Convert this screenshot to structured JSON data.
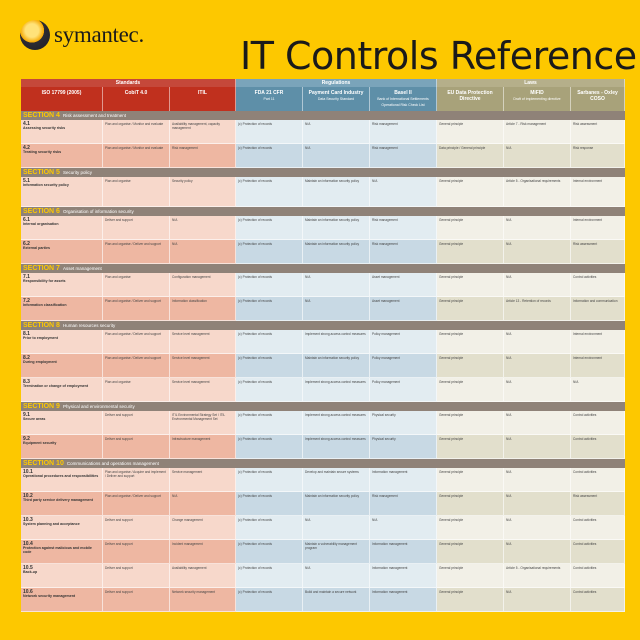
{
  "brand": {
    "logo_text": "symantec."
  },
  "title": "IT Controls Reference",
  "colors": {
    "background": "#fdc800",
    "standards": "#c0301e",
    "regulations": "#5e8fa8",
    "laws": "#a8a27a",
    "section_bar": "#8f8278"
  },
  "header": {
    "groups": [
      {
        "label": "Standards"
      },
      {
        "label": "Regulations"
      },
      {
        "label": "Laws"
      }
    ],
    "columns": [
      {
        "label": "ISO 17799 (2005)",
        "sub": ""
      },
      {
        "label": "CobiT 4.0",
        "sub": ""
      },
      {
        "label": "ITIL",
        "sub": ""
      },
      {
        "label": "FDA 21 CFR",
        "sub": "Part 11"
      },
      {
        "label": "Payment Card Industry",
        "sub": "Data Security Standard"
      },
      {
        "label": "Basel II",
        "sub": "Bank of International Settlements Operational Risk Check List"
      },
      {
        "label": "EU Data Protection Directive",
        "sub": ""
      },
      {
        "label": "MiFID",
        "sub": "Draft of implementing directive"
      },
      {
        "label": "Sarbanes - Oxley COSO",
        "sub": ""
      }
    ]
  },
  "sections": [
    {
      "num": "4",
      "label": "Risk assessment and treatment",
      "rows": [
        {
          "id": "4.1",
          "title": "Assessing security risks",
          "cells": [
            "Plan and organise / Monitor and evaluate",
            "Availability management, capacity management",
            "(c) Protection of records",
            "N/A",
            "Risk management",
            "General principle",
            "Article 7 - Risk management",
            "Risk assessment"
          ]
        },
        {
          "id": "4.2",
          "title": "Treating security risks",
          "cells": [
            "Plan and organise / Monitor and evaluate",
            "Risk management",
            "(c) Protection of records",
            "N/A",
            "Risk management",
            "Data principle / General principle",
            "N/A",
            "Risk response"
          ]
        }
      ]
    },
    {
      "num": "5",
      "label": "Security policy",
      "rows": [
        {
          "id": "5.1",
          "title": "Information security policy",
          "cells": [
            "Plan and organise",
            "Security policy",
            "(c) Protection of records",
            "Maintain an information security policy",
            "N/A",
            "General principle",
            "Article 5 - Organisational requirements",
            "Internal environment"
          ]
        }
      ]
    },
    {
      "num": "6",
      "label": "Organisation of information security",
      "rows": [
        {
          "id": "6.1",
          "title": "Internal organisation",
          "cells": [
            "Deliver and support",
            "N/A",
            "(c) Protection of records",
            "Maintain an information security policy",
            "Risk management",
            "General principle",
            "N/A",
            "Internal environment"
          ]
        },
        {
          "id": "6.2",
          "title": "External parties",
          "cells": [
            "Plan and organise / Deliver and support",
            "N/A",
            "(c) Protection of records",
            "Maintain an information security policy",
            "Risk management",
            "General principle",
            "N/A",
            "Risk assessment"
          ]
        }
      ]
    },
    {
      "num": "7",
      "label": "Asset management",
      "rows": [
        {
          "id": "7.1",
          "title": "Responsibility for assets",
          "cells": [
            "Plan and organise",
            "Configuration management",
            "(c) Protection of records",
            "N/A",
            "Asset management",
            "General principle",
            "N/A",
            "Control activities"
          ]
        },
        {
          "id": "7.2",
          "title": "Information classification",
          "cells": [
            "Plan and organise / Deliver and support",
            "Information classification",
            "(c) Protection of records",
            "N/A",
            "Asset management",
            "General principle",
            "Article 13 - Retention of records",
            "Information and communication"
          ]
        }
      ]
    },
    {
      "num": "8",
      "label": "Human resources security",
      "rows": [
        {
          "id": "8.1",
          "title": "Prior to employment",
          "cells": [
            "Plan and organise / Deliver and support",
            "Service level management",
            "(c) Protection of records",
            "Implement strong access control measures",
            "Policy management",
            "General principle",
            "N/A",
            "Internal environment"
          ]
        },
        {
          "id": "8.2",
          "title": "During employment",
          "cells": [
            "Plan and organise / Deliver and support",
            "Service level management",
            "(c) Protection of records",
            "Maintain an information security policy",
            "Policy management",
            "General principle",
            "N/A",
            "Internal environment"
          ]
        },
        {
          "id": "8.3",
          "title": "Termination or change of employment",
          "cells": [
            "Plan and organise",
            "Service level management",
            "(c) Protection of records",
            "Implement strong access control measures",
            "Policy management",
            "General principle",
            "N/A",
            "N/A"
          ]
        }
      ]
    },
    {
      "num": "9",
      "label": "Physical and environmental security",
      "rows": [
        {
          "id": "9.1",
          "title": "Secure areas",
          "cells": [
            "Deliver and support",
            "ITIL Environmental Strategy Set / ITIL Environmental Management Set",
            "(c) Protection of records",
            "Implement strong access control measures",
            "Physical security",
            "General principle",
            "N/A",
            "Control activities"
          ]
        },
        {
          "id": "9.2",
          "title": "Equipment security",
          "cells": [
            "Deliver and support",
            "Infrastructure management",
            "(c) Protection of records",
            "Implement strong access control measures",
            "Physical security",
            "General principle",
            "N/A",
            "Control activities"
          ]
        }
      ]
    },
    {
      "num": "10",
      "label": "Communications and operations management",
      "rows": [
        {
          "id": "10.1",
          "title": "Operational procedures and responsibilities",
          "cells": [
            "Plan and organise / Acquire and implement / Deliver and support",
            "Service management",
            "(c) Protection of records",
            "Develop and maintain secure systems",
            "Information management",
            "General principle",
            "N/A",
            "Control activities"
          ]
        },
        {
          "id": "10.2",
          "title": "Third party service delivery management",
          "cells": [
            "Plan and organise / Deliver and support",
            "N/A",
            "(c) Protection of records",
            "Maintain an information security policy",
            "Risk management",
            "General principle",
            "N/A",
            "Risk assessment"
          ]
        },
        {
          "id": "10.3",
          "title": "System planning and acceptance",
          "cells": [
            "Deliver and support",
            "Change management",
            "(c) Protection of records",
            "N/A",
            "N/A",
            "General principle",
            "N/A",
            "Control activities"
          ]
        },
        {
          "id": "10.4",
          "title": "Protection against malicious and mobile code",
          "cells": [
            "Deliver and support",
            "Incident management",
            "(c) Protection of records",
            "Maintain a vulnerability management program",
            "Information management",
            "General principle",
            "N/A",
            "Control activities"
          ]
        },
        {
          "id": "10.5",
          "title": "Back-up",
          "cells": [
            "Deliver and support",
            "Availability management",
            "(c) Protection of records",
            "N/A",
            "Information management",
            "General principle",
            "Article 5 - Organisational requirements",
            "Control activities"
          ]
        },
        {
          "id": "10.6",
          "title": "Network security management",
          "cells": [
            "Deliver and support",
            "Network security management",
            "(c) Protection of records",
            "Build and maintain a secure network",
            "Information management",
            "General principle",
            "N/A",
            "Control activities"
          ]
        }
      ]
    }
  ]
}
